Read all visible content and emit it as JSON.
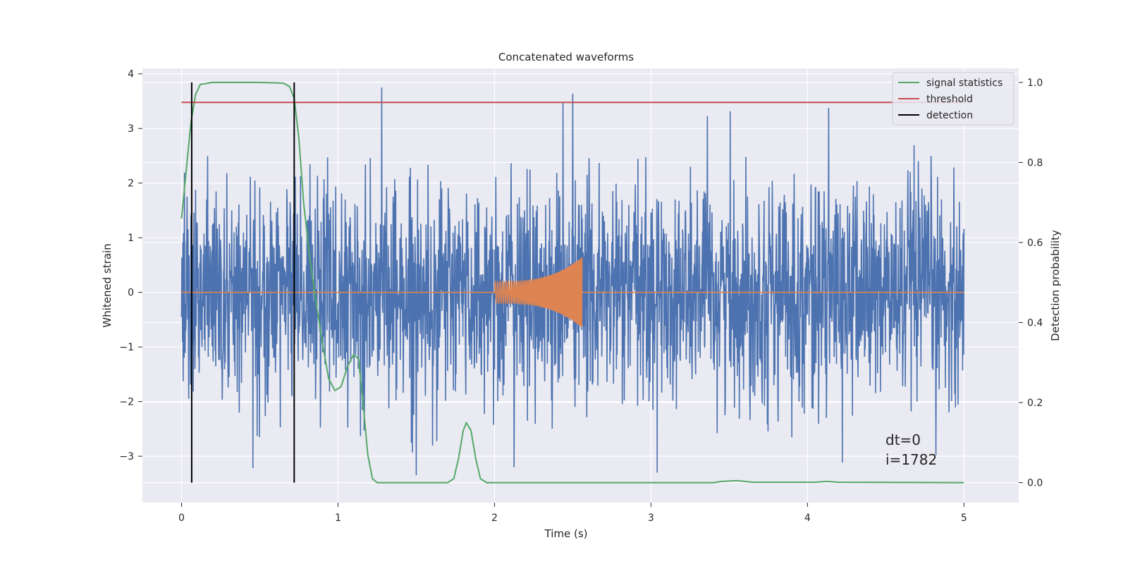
{
  "chart_data": {
    "type": "line",
    "title": "Concatenated waveforms",
    "xlabel": "Time (s)",
    "ylabel": "Whitened strain",
    "y2label": "Detection probability",
    "xlim": [
      -0.25,
      5.35
    ],
    "ylim": [
      -3.85,
      4.1
    ],
    "y2lim": [
      -0.05,
      1.035
    ],
    "x_ticks": [
      0,
      1,
      2,
      3,
      4,
      5
    ],
    "y_ticks": [
      -3,
      -2,
      -1,
      0,
      1,
      2,
      3,
      4
    ],
    "y2_ticks": [
      0.0,
      0.2,
      0.4,
      0.6,
      0.8,
      1.0
    ],
    "x_tick_labels": [
      "0",
      "1",
      "2",
      "3",
      "4",
      "5"
    ],
    "y_tick_labels": [
      "−3",
      "−2",
      "−1",
      "0",
      "1",
      "2",
      "3",
      "4"
    ],
    "y2_tick_labels": [
      "0.0",
      "0.2",
      "0.4",
      "0.6",
      "0.8",
      "1.0"
    ],
    "grid": true,
    "background": "#eaeaf2",
    "legend_placement": "top-right",
    "legend": [
      {
        "label": "signal statistics",
        "color": "#55a868"
      },
      {
        "label": "threshold",
        "color": "#c44e52"
      },
      {
        "label": "detection",
        "color": "#000000"
      }
    ],
    "series": [
      {
        "name": "",
        "axis": "left",
        "kind": "noise",
        "color": "#4c72b0",
        "x_range": [
          0,
          5
        ],
        "typical_amplitude": 1.6,
        "peak_max": 3.75,
        "peak_min": -3.5
      },
      {
        "name": "",
        "axis": "left",
        "kind": "chirp",
        "color": "#dd8452",
        "x_range": [
          2.0,
          2.56
        ],
        "start_amplitude": 0.2,
        "peak_amplitude": 0.65
      },
      {
        "name": "signal statistics",
        "axis": "right",
        "color": "#55a868",
        "points": [
          [
            0,
            0.66
          ],
          [
            0.03,
            0.78
          ],
          [
            0.06,
            0.9
          ],
          [
            0.09,
            0.97
          ],
          [
            0.12,
            0.995
          ],
          [
            0.2,
            1.0
          ],
          [
            0.5,
            1.0
          ],
          [
            0.65,
            0.998
          ],
          [
            0.69,
            0.99
          ],
          [
            0.72,
            0.96
          ],
          [
            0.75,
            0.86
          ],
          [
            0.78,
            0.7
          ],
          [
            0.82,
            0.56
          ],
          [
            0.86,
            0.45
          ],
          [
            0.9,
            0.35
          ],
          [
            0.94,
            0.26
          ],
          [
            0.98,
            0.23
          ],
          [
            1.02,
            0.24
          ],
          [
            1.06,
            0.29
          ],
          [
            1.1,
            0.32
          ],
          [
            1.13,
            0.31
          ],
          [
            1.16,
            0.2
          ],
          [
            1.19,
            0.07
          ],
          [
            1.22,
            0.01
          ],
          [
            1.25,
            0.0
          ],
          [
            1.7,
            0.0
          ],
          [
            1.74,
            0.01
          ],
          [
            1.77,
            0.06
          ],
          [
            1.8,
            0.13
          ],
          [
            1.82,
            0.15
          ],
          [
            1.85,
            0.13
          ],
          [
            1.88,
            0.06
          ],
          [
            1.91,
            0.01
          ],
          [
            1.95,
            0.0
          ],
          [
            3.4,
            0.0
          ],
          [
            3.45,
            0.003
          ],
          [
            3.55,
            0.005
          ],
          [
            3.65,
            0.001
          ],
          [
            4.05,
            0.001
          ],
          [
            4.12,
            0.003
          ],
          [
            4.2,
            0.001
          ],
          [
            5.0,
            0.0
          ]
        ]
      },
      {
        "name": "threshold",
        "axis": "right",
        "color": "#c44e52",
        "points": [
          [
            0,
            0.95
          ],
          [
            5,
            0.95
          ]
        ]
      },
      {
        "name": "detection",
        "axis": "right",
        "color": "#000000",
        "x_values": [
          0.065,
          0.72
        ],
        "y_range": [
          0,
          1.0
        ]
      }
    ],
    "annotations": [
      "dt=0",
      "i=1782"
    ]
  }
}
